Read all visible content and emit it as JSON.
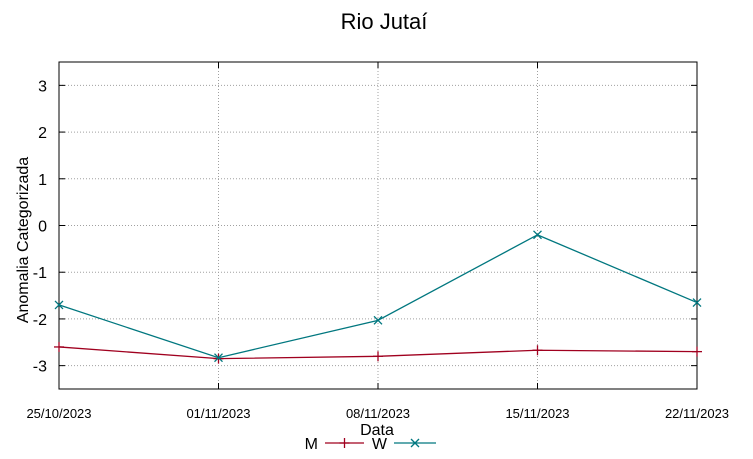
{
  "chart_data": {
    "type": "line",
    "title": "Rio Jutaí",
    "xlabel": "Data",
    "ylabel": "Anomalia Categorizada",
    "categories": [
      "25/10/2023",
      "01/11/2023",
      "08/11/2023",
      "15/11/2023",
      "22/11/2023"
    ],
    "yticks": [
      "3",
      "2",
      "1",
      "0",
      "-1",
      "-2",
      "-3"
    ],
    "ylim": [
      -3.5,
      3.5
    ],
    "grid": true,
    "legend_position": "bottom-center",
    "series": [
      {
        "name": "M",
        "color": "#a0001f",
        "marker": "plus",
        "values": [
          -2.6,
          -2.85,
          -2.8,
          -2.67,
          -2.7
        ]
      },
      {
        "name": "W",
        "color": "#00777f",
        "marker": "cross",
        "values": [
          -1.7,
          -2.83,
          -2.03,
          -0.2,
          -1.65
        ]
      }
    ]
  }
}
